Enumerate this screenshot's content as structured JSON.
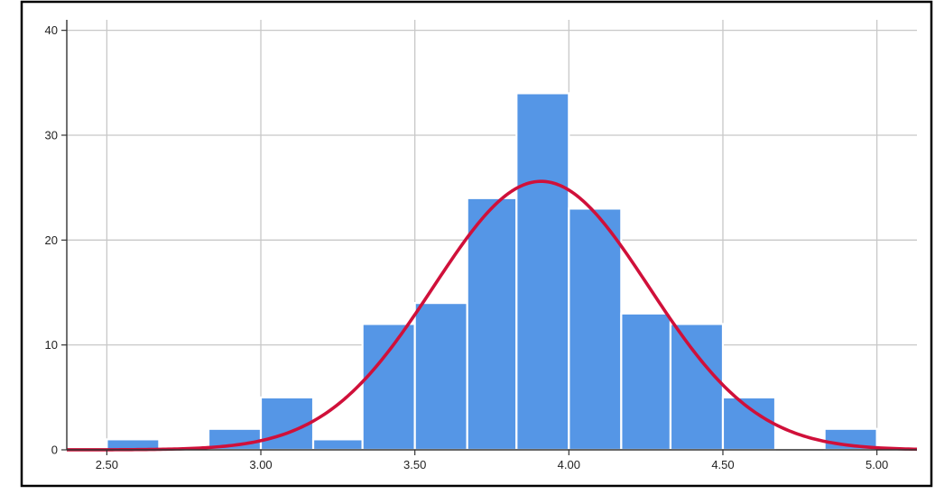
{
  "chart_data": {
    "type": "bar",
    "histogram": true,
    "bins": [
      {
        "start": 2.5,
        "end": 2.67,
        "count": 1
      },
      {
        "start": 2.67,
        "end": 2.83,
        "count": 0
      },
      {
        "start": 2.83,
        "end": 3.0,
        "count": 2
      },
      {
        "start": 3.0,
        "end": 3.17,
        "count": 5
      },
      {
        "start": 3.17,
        "end": 3.33,
        "count": 1
      },
      {
        "start": 3.33,
        "end": 3.5,
        "count": 12
      },
      {
        "start": 3.5,
        "end": 3.67,
        "count": 14
      },
      {
        "start": 3.67,
        "end": 3.83,
        "count": 24
      },
      {
        "start": 3.83,
        "end": 4.0,
        "count": 34
      },
      {
        "start": 4.0,
        "end": 4.17,
        "count": 23
      },
      {
        "start": 4.17,
        "end": 4.33,
        "count": 13
      },
      {
        "start": 4.33,
        "end": 4.5,
        "count": 12
      },
      {
        "start": 4.5,
        "end": 4.67,
        "count": 5
      },
      {
        "start": 4.67,
        "end": 4.83,
        "count": 0
      },
      {
        "start": 4.83,
        "end": 5.0,
        "count": 2
      }
    ],
    "normal_curve": {
      "mean": 3.91,
      "sd": 0.35,
      "peak": 25.6
    },
    "x_ticks": [
      "2.50",
      "3.00",
      "3.50",
      "4.00",
      "4.50",
      "5.00"
    ],
    "y_ticks": [
      "0",
      "10",
      "20",
      "30",
      "40"
    ],
    "xlim": [
      2.37,
      5.13
    ],
    "ylim": [
      0,
      41
    ],
    "grid": true,
    "colors": {
      "bar": "#5596e6",
      "bar_edge": "#ffffff",
      "curve": "#d0103a",
      "grid": "#c8c8c8",
      "frame": "#000000"
    }
  }
}
